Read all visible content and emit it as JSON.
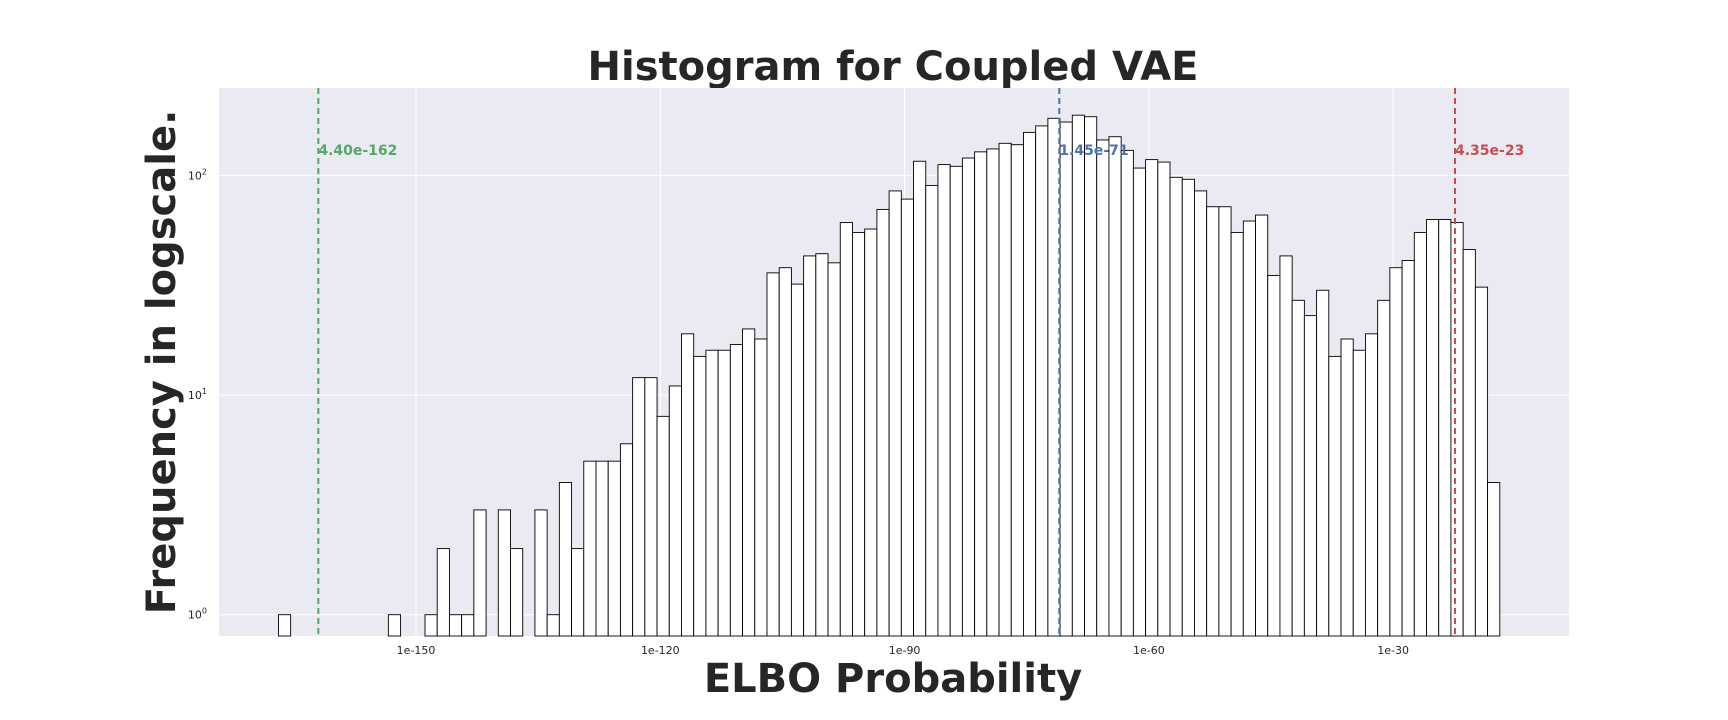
{
  "chart_data": {
    "type": "bar",
    "title": "Histogram for Coupled VAE",
    "xlabel": "ELBO Probability",
    "ylabel": "Frequency in logscale.",
    "y_scale": "log",
    "grid": true,
    "background_color": "#eaeaf2",
    "bar_fill": "#ffffff",
    "bar_edge": "#000000",
    "xlim": [
      -174.2,
      -8.4
    ],
    "ylim": [
      0.8,
      250
    ],
    "x_ticks": [
      {
        "value": -150,
        "label": "1e-150"
      },
      {
        "value": -120,
        "label": "1e-120"
      },
      {
        "value": -90,
        "label": "1e-90"
      },
      {
        "value": -60,
        "label": "1e-60"
      },
      {
        "value": -30,
        "label": "1e-30"
      }
    ],
    "y_ticks": [
      {
        "value": 1,
        "base": "10",
        "exp": "0"
      },
      {
        "value": 10,
        "base": "10",
        "exp": "1"
      },
      {
        "value": 100,
        "base": "10",
        "exp": "2"
      }
    ],
    "bin_start": -166.9,
    "bin_width": 1.5,
    "counts": [
      1,
      0,
      0,
      0,
      0,
      0,
      0,
      0,
      0,
      1,
      0,
      0,
      1,
      2,
      1,
      1,
      3,
      0,
      3,
      2,
      0,
      3,
      1,
      4,
      2,
      5,
      5,
      5,
      6,
      12,
      12,
      8,
      11,
      19,
      15,
      16,
      16,
      17,
      20,
      18,
      36,
      38,
      32,
      43,
      44,
      40,
      61,
      55,
      57,
      70,
      85,
      78,
      116,
      90,
      112,
      110,
      120,
      128,
      132,
      140,
      138,
      157,
      168,
      182,
      175,
      188,
      185,
      145,
      150,
      130,
      108,
      118,
      115,
      98,
      96,
      85,
      72,
      72,
      55,
      62,
      66,
      35,
      43,
      27,
      23,
      30,
      15,
      18,
      16,
      19,
      27,
      38,
      41,
      55,
      63,
      63,
      61,
      46,
      31,
      4
    ],
    "vlines": [
      {
        "x": -162.0,
        "label": "4.40e-162",
        "color": "#55a868"
      },
      {
        "x": -71.0,
        "label": "1.45e-71",
        "color": "#4c72b0"
      },
      {
        "x": -22.4,
        "label": "4.35e-23",
        "color": "#c44e52"
      }
    ]
  }
}
